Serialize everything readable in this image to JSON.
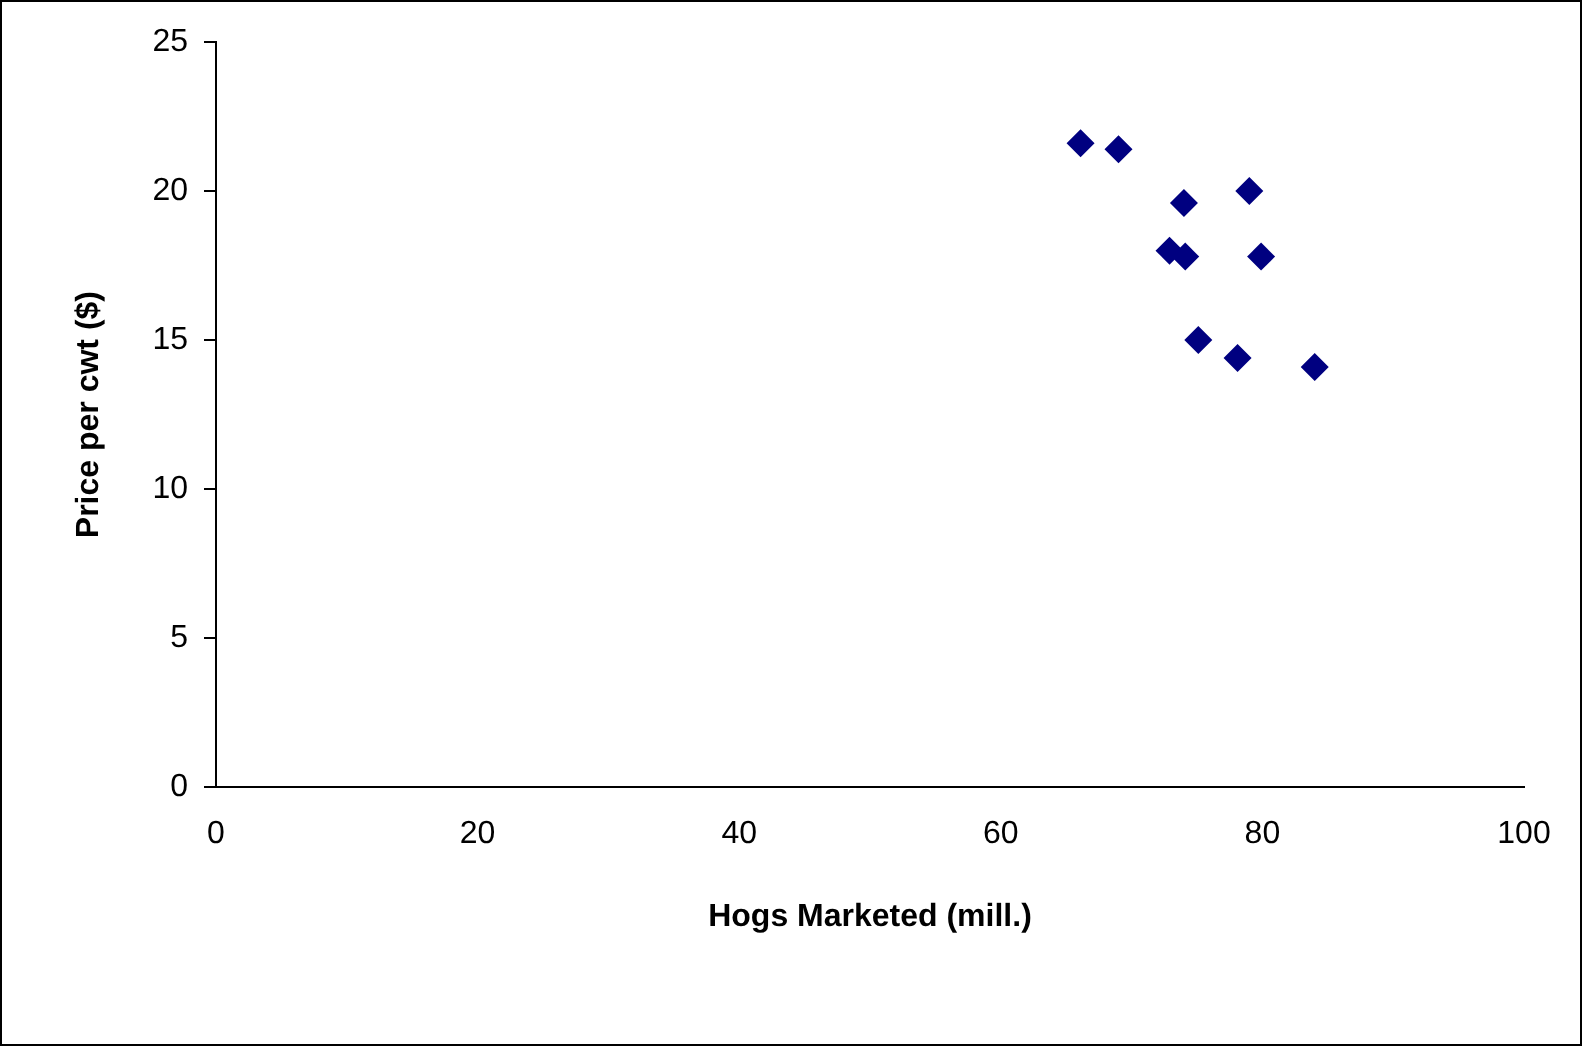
{
  "chart_data": {
    "type": "scatter",
    "xlabel": "Hogs Marketed (mill.)",
    "ylabel": "Price per cwt ($)",
    "x": [
      66.1,
      69.0,
      74.0,
      79.0,
      72.9,
      74.1,
      79.9,
      75.1,
      78.1,
      84.0
    ],
    "series": [
      {
        "color": "#000080",
        "values": [
          21.6,
          21.4,
          19.6,
          20.0,
          18.0,
          17.8,
          17.8,
          15.0,
          14.4,
          14.1
        ]
      }
    ],
    "xlim": [
      0,
      100
    ],
    "xticks": [
      0,
      20,
      40,
      60,
      80,
      100
    ],
    "ylim": [
      0,
      25
    ],
    "yticks": [
      0,
      5,
      10,
      15,
      20,
      25
    ],
    "grid": false,
    "legend": false,
    "marker": "diamond"
  }
}
